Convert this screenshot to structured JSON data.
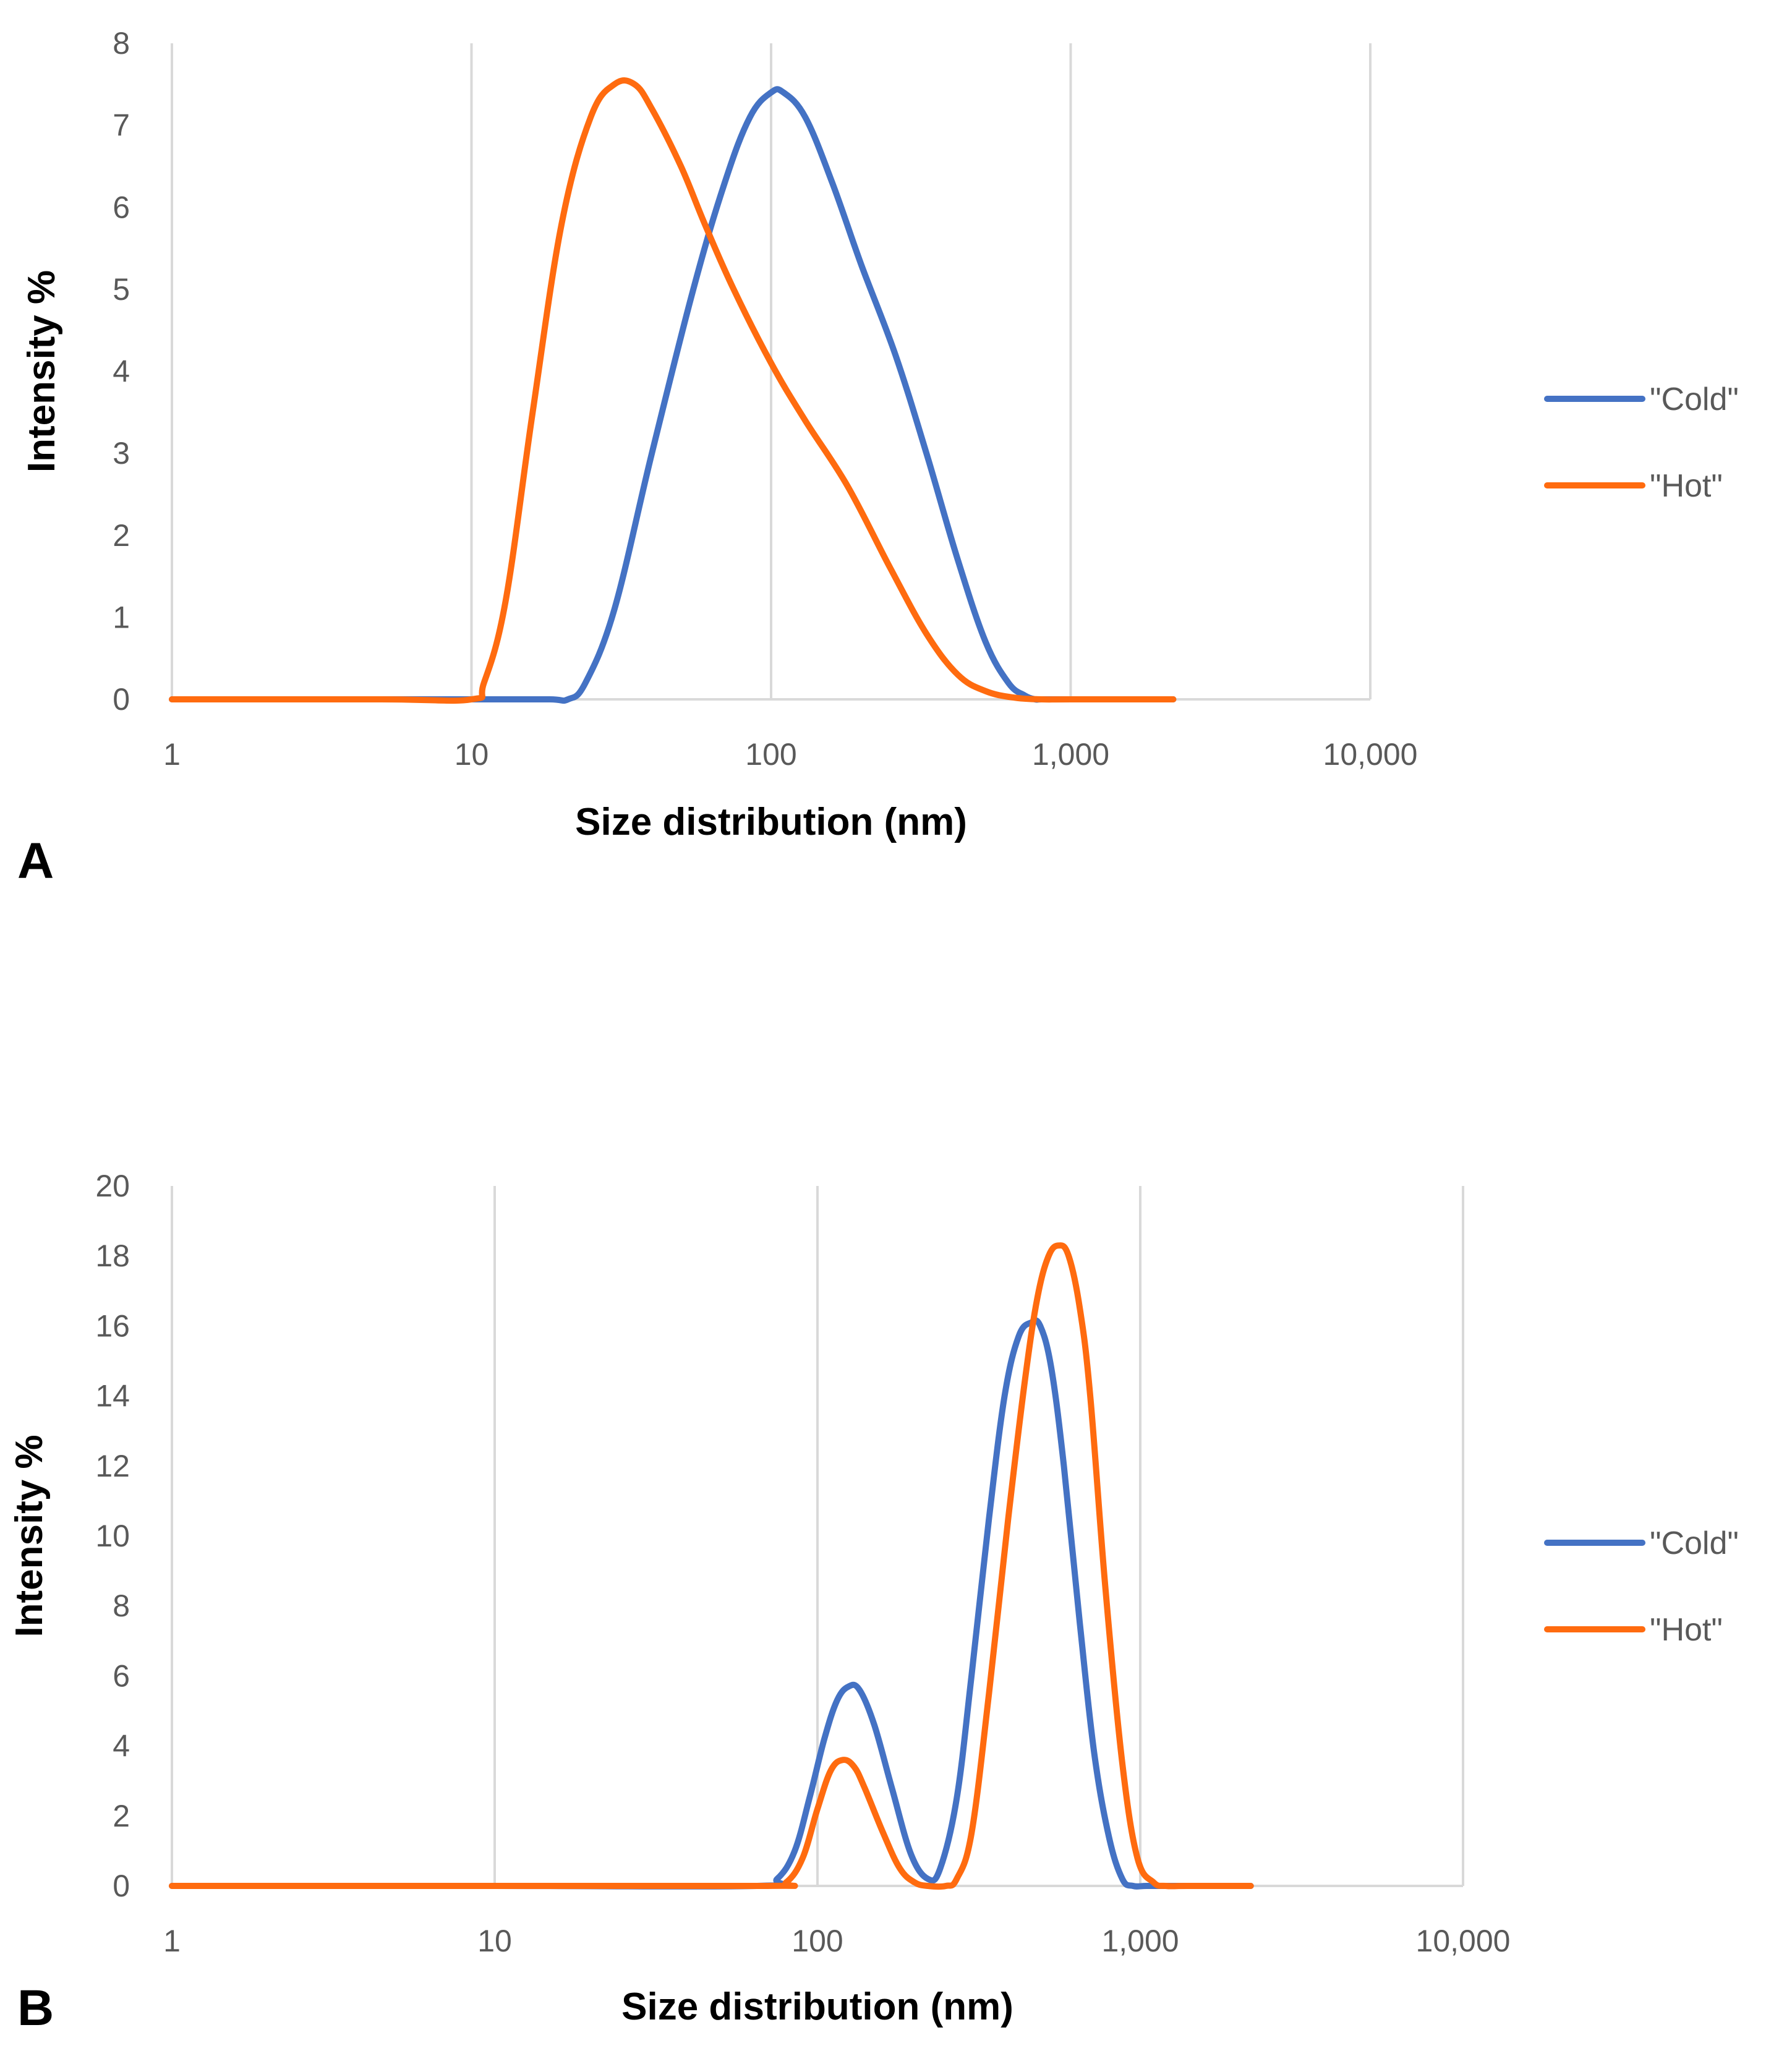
{
  "colors": {
    "cold": "#4472C4",
    "hot": "#FF6B0F",
    "grid": "#D9D9D9",
    "tick_text": "#595959"
  },
  "chart_data": [
    {
      "type": "line",
      "panel_label": "A",
      "xlabel": "Size distribution (nm)",
      "ylabel": "Intensity %",
      "xscale": "log",
      "xlim": [
        1,
        10000
      ],
      "ylim": [
        0,
        8
      ],
      "x_ticks": [
        1,
        10,
        100,
        1000,
        10000
      ],
      "x_tick_labels": [
        "1",
        "10",
        "100",
        "1,000",
        "10,000"
      ],
      "y_ticks": [
        0,
        1,
        2,
        3,
        4,
        5,
        6,
        7,
        8
      ],
      "y_tick_labels": [
        "0",
        "1",
        "2",
        "3",
        "4",
        "5",
        "6",
        "7",
        "8"
      ],
      "grid": "vertical",
      "legend_position": "right",
      "series": [
        {
          "name": "\"Cold\"",
          "color_key": "cold",
          "x": [
            1,
            5,
            10,
            18,
            21,
            24,
            30,
            40,
            55,
            70,
            85,
            100,
            110,
            130,
            160,
            200,
            260,
            330,
            420,
            520,
            620,
            700,
            760,
            800,
            1000,
            2200
          ],
          "y": [
            0,
            0,
            0,
            0,
            0,
            0.2,
            1.1,
            3.0,
            5.0,
            6.3,
            7.1,
            7.4,
            7.4,
            7.1,
            6.3,
            5.3,
            4.2,
            3.0,
            1.7,
            0.7,
            0.2,
            0.05,
            0,
            0,
            0,
            0
          ]
        },
        {
          "name": "\"Hot\"",
          "color_key": "hot",
          "x": [
            1,
            5,
            10,
            11,
            13,
            16,
            20,
            25,
            30,
            35,
            40,
            50,
            60,
            75,
            100,
            130,
            180,
            250,
            330,
            420,
            520,
            650,
            800,
            1000,
            2200
          ],
          "y": [
            0,
            0,
            0,
            0.2,
            1.2,
            3.5,
            5.8,
            7.1,
            7.5,
            7.5,
            7.2,
            6.5,
            5.8,
            5.0,
            4.1,
            3.4,
            2.6,
            1.6,
            0.8,
            0.3,
            0.1,
            0.02,
            0,
            0,
            0
          ]
        }
      ]
    },
    {
      "type": "line",
      "panel_label": "B",
      "xlabel": "Size distribution (nm)",
      "ylabel": "Intensity %",
      "xscale": "log",
      "xlim": [
        1,
        10000
      ],
      "ylim": [
        0,
        20
      ],
      "x_ticks": [
        1,
        10,
        100,
        1000,
        10000
      ],
      "x_tick_labels": [
        "1",
        "10",
        "100",
        "1,000",
        "10,000"
      ],
      "y_ticks": [
        0,
        2,
        4,
        6,
        8,
        10,
        12,
        14,
        16,
        18,
        20
      ],
      "y_tick_labels": [
        "0",
        "2",
        "4",
        "6",
        "8",
        "10",
        "12",
        "14",
        "16",
        "18",
        "20"
      ],
      "grid": "vertical",
      "legend_position": "right",
      "series": [
        {
          "name": "\"Cold\"",
          "color_key": "cold",
          "x": [
            1,
            10,
            65,
            75,
            85,
            95,
            105,
            115,
            125,
            135,
            150,
            170,
            195,
            220,
            240,
            270,
            300,
            340,
            380,
            420,
            460,
            490,
            530,
            580,
            650,
            720,
            800,
            880,
            950,
            1050,
            1300,
            2200
          ],
          "y": [
            0,
            0,
            0,
            0.2,
            1.0,
            2.6,
            4.2,
            5.3,
            5.7,
            5.6,
            4.6,
            2.8,
            0.9,
            0.2,
            0.5,
            2.5,
            6.0,
            10.5,
            14.0,
            15.7,
            16.1,
            16.0,
            14.8,
            12.0,
            7.5,
            3.8,
            1.4,
            0.2,
            0,
            0,
            0,
            0
          ]
        },
        {
          "name": "\"Hot\"",
          "color_key": "hot",
          "x": [
            1,
            10,
            70,
            80,
            90,
            100,
            110,
            120,
            130,
            140,
            160,
            180,
            200,
            220,
            250,
            270,
            300,
            340,
            390,
            440,
            480,
            520,
            560,
            600,
            650,
            700,
            780,
            880,
            980,
            1100,
            1200,
            1400,
            2200
          ],
          "y": [
            0,
            0,
            0,
            0.1,
            0.8,
            2.2,
            3.3,
            3.6,
            3.4,
            2.8,
            1.5,
            0.5,
            0.1,
            0,
            0,
            0.2,
            1.5,
            5.5,
            10.5,
            14.5,
            16.8,
            18.0,
            18.3,
            18.0,
            16.5,
            14.0,
            8.5,
            3.5,
            0.8,
            0.1,
            0,
            0,
            0
          ]
        }
      ]
    }
  ]
}
